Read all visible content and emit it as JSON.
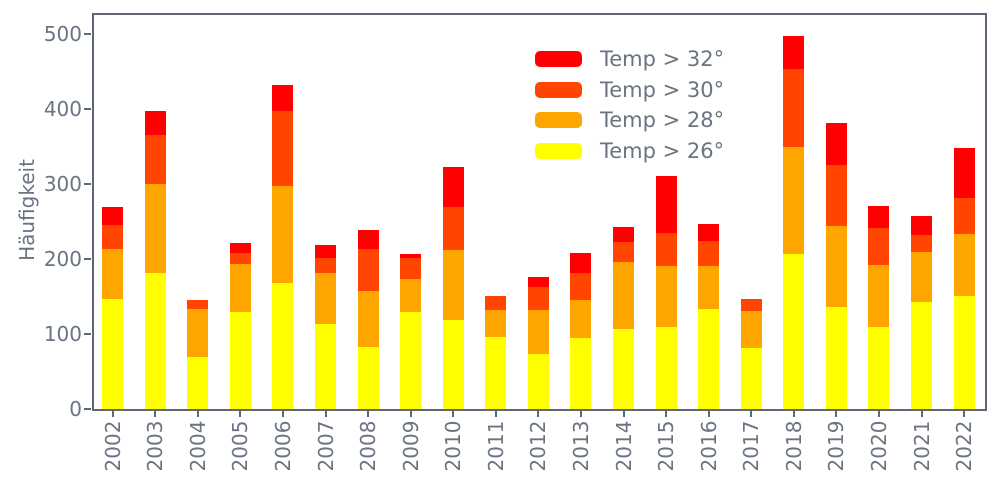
{
  "figure": {
    "background_color": "#ffffff",
    "text_color": "#6a7482",
    "axis_color": "#5d6775"
  },
  "chart_data": {
    "type": "bar",
    "stacked": true,
    "title": "",
    "xlabel": "",
    "ylabel": "Häufigkeit",
    "ylim": [
      0,
      525
    ],
    "yticks": [
      0,
      100,
      200,
      300,
      400,
      500
    ],
    "grid": false,
    "categories": [
      "2002",
      "2003",
      "2004",
      "2005",
      "2006",
      "2007",
      "2008",
      "2009",
      "2010",
      "2011",
      "2012",
      "2013",
      "2014",
      "2015",
      "2016",
      "2017",
      "2018",
      "2019",
      "2020",
      "2021",
      "2022"
    ],
    "series": [
      {
        "name": "Temp > 26°",
        "color": "#ffff00",
        "values": [
          147,
          182,
          70,
          129,
          168,
          114,
          83,
          130,
          119,
          96,
          74,
          95,
          107,
          110,
          133,
          81,
          207,
          136,
          109,
          143,
          151
        ]
      },
      {
        "name": "Temp > 28°",
        "color": "#ffa500",
        "values": [
          67,
          118,
          63,
          65,
          129,
          67,
          74,
          43,
          93,
          36,
          58,
          50,
          89,
          81,
          58,
          50,
          143,
          108,
          83,
          66,
          83
        ]
      },
      {
        "name": "Temp > 30°",
        "color": "#ff4500",
        "values": [
          31,
          66,
          13,
          14,
          101,
          20,
          56,
          29,
          58,
          19,
          31,
          36,
          27,
          44,
          33,
          16,
          104,
          81,
          49,
          23,
          48
        ]
      },
      {
        "name": "Temp > 32°",
        "color": "#ff0000",
        "values": [
          25,
          31,
          0,
          14,
          34,
          18,
          26,
          5,
          53,
          0,
          13,
          27,
          20,
          76,
          23,
          0,
          44,
          57,
          30,
          26,
          66
        ]
      }
    ],
    "legend": {
      "position": "upper center, inside plot",
      "entries": [
        {
          "label": "Temp > 32°",
          "color": "#ff0000"
        },
        {
          "label": "Temp > 30°",
          "color": "#ff4500"
        },
        {
          "label": "Temp > 28°",
          "color": "#ffa500"
        },
        {
          "label": "Temp > 26°",
          "color": "#ffff00"
        }
      ]
    }
  }
}
